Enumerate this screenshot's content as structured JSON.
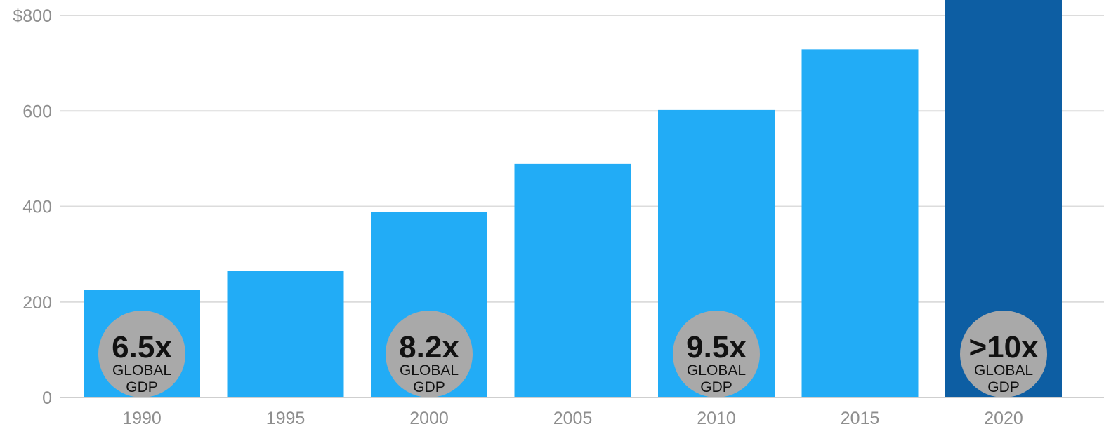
{
  "chart_data": {
    "type": "bar",
    "categories": [
      "1990",
      "1995",
      "2000",
      "2005",
      "2010",
      "2015",
      "2020"
    ],
    "values": [
      226,
      265,
      389,
      489,
      602,
      729,
      860
    ],
    "ylim": [
      0,
      800
    ],
    "y_ticks": [
      {
        "value": 0,
        "label": "0"
      },
      {
        "value": 200,
        "label": "200"
      },
      {
        "value": 400,
        "label": "400"
      },
      {
        "value": 600,
        "label": "600"
      },
      {
        "value": 800,
        "label": "$800"
      }
    ],
    "title": "",
    "xlabel": "",
    "ylabel": "",
    "grid": true,
    "bar_colors": [
      "#22acf6",
      "#22acf6",
      "#22acf6",
      "#22acf6",
      "#22acf6",
      "#22acf6",
      "#0d5ea3"
    ],
    "annotations": [
      {
        "category": "1990",
        "multiple": "6.5x",
        "line1": "GLOBAL",
        "line2": "GDP"
      },
      {
        "category": "2000",
        "multiple": "8.2x",
        "line1": "GLOBAL",
        "line2": "GDP"
      },
      {
        "category": "2010",
        "multiple": "9.5x",
        "line1": "GLOBAL",
        "line2": "GDP"
      },
      {
        "category": "2020",
        "multiple": ">10x",
        "line1": "GLOBAL",
        "line2": "GDP"
      }
    ]
  },
  "colors": {
    "bar": "#22acf6",
    "bar_highlight": "#0d5ea3",
    "badge": "#a9a9a9",
    "grid": "#dcdcdc",
    "tick_text": "#8e8e8e"
  }
}
